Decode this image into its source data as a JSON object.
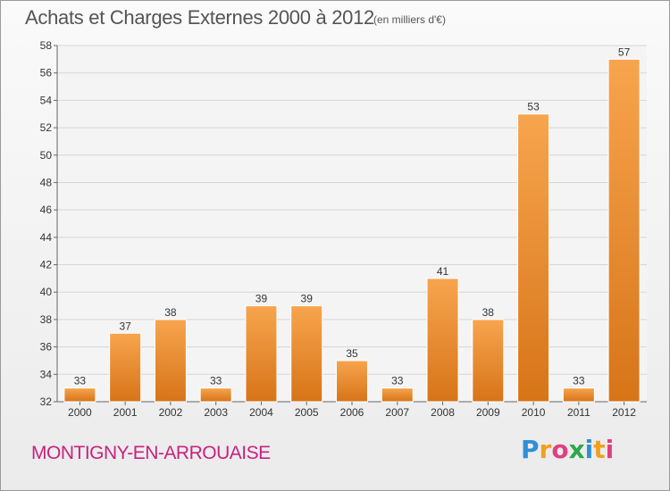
{
  "title": "Achats et Charges Externes 2000 à 2012",
  "subtitle": "(en milliers d'€)",
  "commune": "MONTIGNY-EN-ARROUAISE",
  "logo": {
    "letters": [
      "P",
      "r",
      "o",
      "x",
      "i",
      "t",
      "i"
    ],
    "colors": [
      "#2f8fd8",
      "#f0a020",
      "#e04080",
      "#2fa84a",
      "#2f8fd8",
      "#f0a020",
      "#e04080"
    ]
  },
  "colors": {
    "bar_light": "#f7a54e",
    "bar_dark": "#d77418",
    "title_text": "#555555",
    "commune_text": "#c8217f",
    "grid": "#d6d6d6"
  },
  "chart_data": {
    "type": "bar",
    "categories": [
      "2000",
      "2001",
      "2002",
      "2003",
      "2004",
      "2005",
      "2006",
      "2007",
      "2008",
      "2009",
      "2010",
      "2011",
      "2012"
    ],
    "values": [
      33,
      37,
      38,
      33,
      39,
      39,
      35,
      33,
      41,
      38,
      53,
      33,
      57
    ],
    "ylim": [
      32,
      58
    ],
    "yticks": [
      32,
      34,
      36,
      38,
      40,
      42,
      44,
      46,
      48,
      50,
      52,
      54,
      56,
      58
    ],
    "grid": true,
    "xlabel": "",
    "ylabel": ""
  }
}
